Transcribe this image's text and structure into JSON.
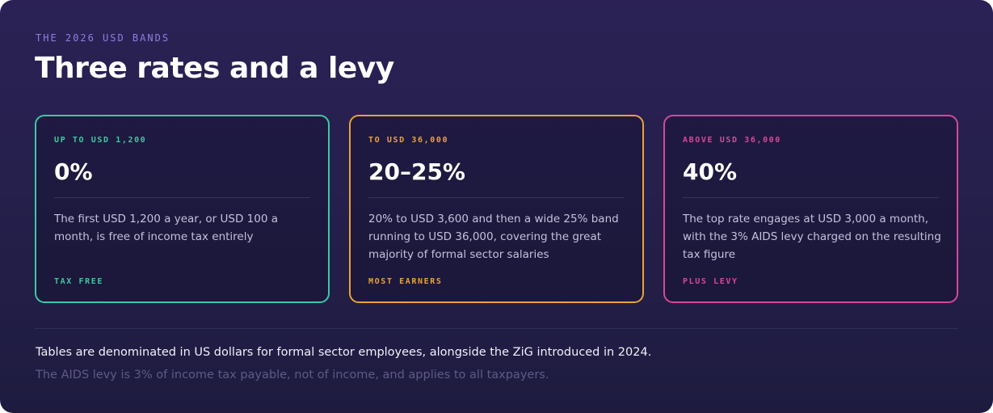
{
  "header": {
    "eyebrow": "THE 2026 USD BANDS",
    "title": "Three rates and a levy"
  },
  "cards": [
    {
      "band": "UP TO USD 1,200",
      "rate": "0%",
      "description": "The first USD 1,200 a year, or USD 100 a month, is free of income tax entirely",
      "tag": "TAX FREE",
      "accent_color": "#3fc7a2"
    },
    {
      "band": "TO USD 36,000",
      "rate": "20–25%",
      "description": "20% to USD 3,600 and then a wide 25% band running to USD 36,000, covering the great majority of formal sector salaries",
      "tag": "MOST EARNERS",
      "accent_color": "#e9a23b"
    },
    {
      "band": "ABOVE USD 36,000",
      "rate": "40%",
      "description": "The top rate engages at USD 3,000 a month, with the 3% AIDS levy charged on the resulting tax figure",
      "tag": "PLUS LEVY",
      "accent_color": "#d6489a"
    }
  ],
  "footer": {
    "note": "Tables are denominated in US dollars for formal sector employees, alongside the ZiG introduced in 2024.",
    "subnote": "The AIDS levy is 3% of income tax payable, not of income, and applies to all taxpayers."
  },
  "colors": {
    "background": "#25204c",
    "eyebrow": "#8b7fe0",
    "title": "#ffffff"
  }
}
